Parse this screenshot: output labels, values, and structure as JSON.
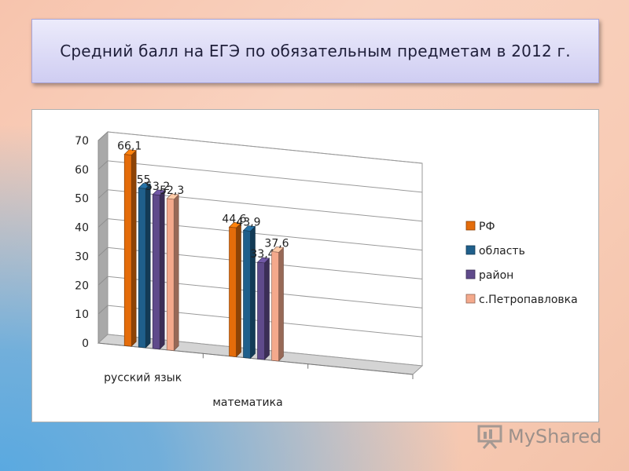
{
  "slide": {
    "title": "Средний балл на ЕГЭ по обязательным предметам   в 2012 г."
  },
  "watermark": {
    "text": "MyShared",
    "icon": "presentation-board-icon"
  },
  "chart_data": {
    "type": "bar",
    "style": "3d-clustered-column",
    "categories": [
      "русский язык",
      "математика"
    ],
    "series": [
      {
        "name": "РФ",
        "color": "#e46c0a",
        "values": [
          66.1,
          44.6
        ]
      },
      {
        "name": "область",
        "color": "#1f5f8b",
        "values": [
          55,
          43.9
        ]
      },
      {
        "name": "район",
        "color": "#5f4a8b",
        "values": [
          53.2,
          33.4
        ]
      },
      {
        "name": "с.Петропавловка",
        "color": "#f4a98c",
        "values": [
          52.3,
          37.6
        ]
      }
    ],
    "data_labels": [
      [
        "66,1",
        "44,6"
      ],
      [
        "55",
        "43,9"
      ],
      [
        "53,2",
        "33,4"
      ],
      [
        "52,3",
        "37,6"
      ]
    ],
    "y_ticks": [
      "0",
      "10",
      "20",
      "30",
      "40",
      "50",
      "60",
      "70"
    ],
    "ylim": [
      0,
      70
    ],
    "grid": true,
    "legend_position": "right"
  }
}
